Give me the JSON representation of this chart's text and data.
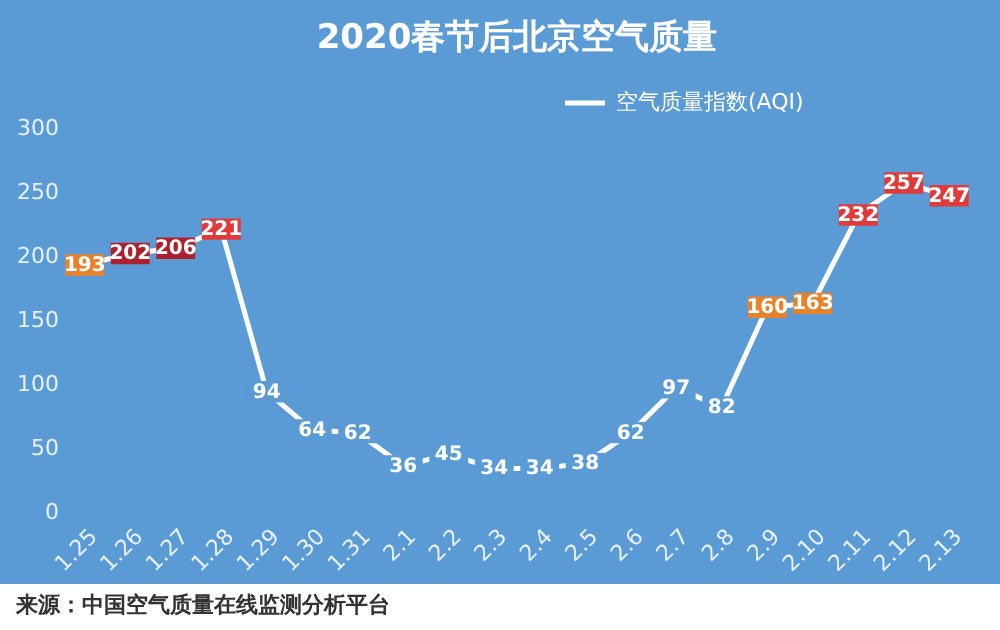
{
  "chart_data": {
    "type": "line",
    "title": "2020春节后北京空气质量",
    "categories": [
      "1.25",
      "1.26",
      "1.27",
      "1.28",
      "1.29",
      "1.30",
      "1.31",
      "2.1",
      "2.2",
      "2.3",
      "2.4",
      "2.5",
      "2.6",
      "2.7",
      "2.8",
      "2.9",
      "2.10",
      "2.11",
      "2.12",
      "2.13"
    ],
    "series": [
      {
        "name": "空气质量指数(AQI)",
        "color": "#ffffff",
        "values": [
          193,
          202,
          206,
          221,
          94,
          64,
          62,
          36,
          45,
          34,
          34,
          38,
          62,
          97,
          82,
          160,
          163,
          232,
          257,
          247
        ],
        "colors": [
          "#e8822a",
          "#b0202c",
          "#b0202c",
          "#e03a3a",
          null,
          null,
          null,
          null,
          null,
          null,
          null,
          null,
          null,
          null,
          null,
          "#e8822a",
          "#e8822a",
          "#e03a3a",
          "#e03a3a",
          "#e03a3a"
        ]
      }
    ],
    "ylim": [
      0,
      300
    ],
    "yticks": [
      0,
      50,
      100,
      150,
      200,
      250,
      300
    ],
    "grid": false,
    "legend": "top right",
    "marker": "square",
    "line_style": "solid",
    "data_labels": true,
    "annotations": [
      "来源：中国空气质量在线监测分析平台"
    ]
  }
}
